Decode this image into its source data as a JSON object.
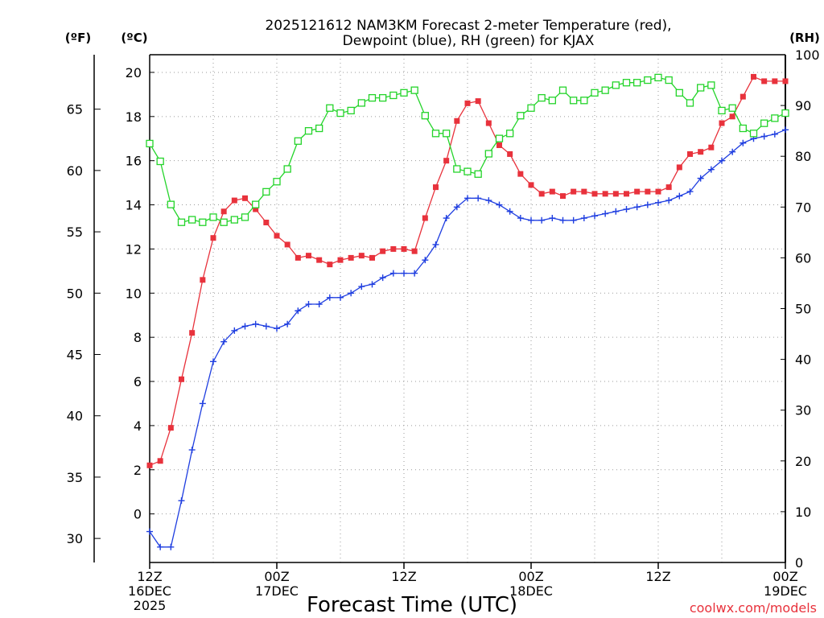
{
  "chart_data": {
    "type": "line",
    "title_line1": "2025121612 NAM3KM Forecast 2-meter Temperature (red),",
    "title_line2": "Dewpoint (blue), RH (green) for KJAX",
    "xlabel": "Forecast Time (UTC)",
    "credit": "coolwx.com/models",
    "unit_labels": {
      "fahrenheit": "(ºF)",
      "celsius": "(ºC)",
      "rh": "(RH)"
    },
    "x_ticks": [
      {
        "hour": 0,
        "label1": "12Z",
        "label2": "16DEC",
        "label3": "2025"
      },
      {
        "hour": 12,
        "label1": "00Z",
        "label2": "17DEC",
        "label3": ""
      },
      {
        "hour": 24,
        "label1": "12Z",
        "label2": "",
        "label3": ""
      },
      {
        "hour": 36,
        "label1": "00Z",
        "label2": "18DEC",
        "label3": ""
      },
      {
        "hour": 48,
        "label1": "12Z",
        "label2": "",
        "label3": ""
      },
      {
        "hour": 60,
        "label1": "00Z",
        "label2": "19DEC",
        "label3": ""
      }
    ],
    "xlim": [
      0,
      60
    ],
    "celsius_axis": {
      "ylim": [
        -2.2,
        20.8
      ],
      "ticks": [
        0,
        2,
        4,
        6,
        8,
        10,
        12,
        14,
        16,
        18,
        20
      ]
    },
    "fahrenheit_axis": {
      "ticks": [
        30,
        35,
        40,
        45,
        50,
        55,
        60,
        65
      ]
    },
    "rh_axis": {
      "ylim": [
        0,
        100
      ],
      "ticks": [
        0,
        10,
        20,
        30,
        40,
        50,
        60,
        70,
        80,
        90,
        100
      ]
    },
    "hours": [
      0,
      1,
      2,
      3,
      4,
      5,
      6,
      7,
      8,
      9,
      10,
      11,
      12,
      13,
      14,
      15,
      16,
      17,
      18,
      19,
      20,
      21,
      22,
      23,
      24,
      25,
      26,
      27,
      28,
      29,
      30,
      31,
      32,
      33,
      34,
      35,
      36,
      37,
      38,
      39,
      40,
      41,
      42,
      43,
      44,
      45,
      46,
      47,
      48,
      49,
      50,
      51,
      52,
      53,
      54,
      55,
      56,
      57,
      58,
      59,
      60
    ],
    "series": [
      {
        "name": "Temperature",
        "color": "#e8323c",
        "marker": "filled-square",
        "axis": "celsius",
        "values": [
          2.2,
          2.4,
          3.9,
          6.1,
          8.2,
          10.6,
          12.5,
          13.7,
          14.2,
          14.3,
          13.8,
          13.2,
          12.6,
          12.2,
          11.6,
          11.7,
          11.5,
          11.3,
          11.5,
          11.6,
          11.7,
          11.6,
          11.9,
          12.0,
          12.0,
          11.9,
          13.4,
          14.8,
          16.0,
          17.8,
          18.6,
          18.7,
          17.7,
          16.7,
          16.3,
          15.4,
          14.9,
          14.5,
          14.6,
          14.4,
          14.6,
          14.6,
          14.5,
          14.5,
          14.5,
          14.5,
          14.6,
          14.6,
          14.6,
          14.8,
          15.7,
          16.3,
          16.4,
          16.6,
          17.7,
          18.0,
          18.9,
          19.8,
          19.6,
          19.6,
          19.6
        ]
      },
      {
        "name": "Dewpoint",
        "color": "#1f3ee0",
        "marker": "plus",
        "axis": "celsius",
        "values": [
          -0.8,
          -1.5,
          -1.5,
          0.6,
          2.9,
          5.0,
          6.9,
          7.8,
          8.3,
          8.5,
          8.6,
          8.5,
          8.4,
          8.6,
          9.2,
          9.5,
          9.5,
          9.8,
          9.8,
          10.0,
          10.3,
          10.4,
          10.7,
          10.9,
          10.9,
          10.9,
          11.5,
          12.2,
          13.4,
          13.9,
          14.3,
          14.3,
          14.2,
          14.0,
          13.7,
          13.4,
          13.3,
          13.3,
          13.4,
          13.3,
          13.3,
          13.4,
          13.5,
          13.6,
          13.7,
          13.8,
          13.9,
          14.0,
          14.1,
          14.2,
          14.4,
          14.6,
          15.2,
          15.6,
          16.0,
          16.4,
          16.8,
          17.0,
          17.1,
          17.2,
          17.4
        ]
      },
      {
        "name": "RH",
        "color": "#24d42a",
        "marker": "open-square",
        "axis": "rh",
        "values": [
          82.5,
          79.0,
          70.5,
          67.0,
          67.5,
          67.0,
          68.0,
          67.0,
          67.5,
          68.0,
          70.5,
          73.0,
          75.0,
          77.5,
          83.0,
          85.0,
          85.5,
          89.5,
          88.5,
          89.0,
          90.5,
          91.5,
          91.5,
          92.0,
          92.5,
          93.0,
          88.0,
          84.5,
          84.5,
          77.5,
          77.0,
          76.5,
          80.5,
          83.5,
          84.5,
          88.0,
          89.5,
          91.5,
          91.0,
          93.0,
          91.0,
          91.0,
          92.5,
          93.0,
          94.0,
          94.5,
          94.5,
          95.0,
          95.5,
          95.0,
          92.5,
          90.5,
          93.5,
          94.0,
          89.0,
          89.5,
          85.5,
          84.5,
          86.5,
          87.5,
          88.5
        ]
      }
    ]
  }
}
